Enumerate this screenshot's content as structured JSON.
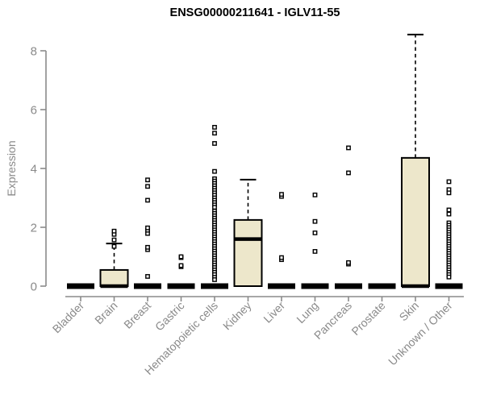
{
  "title": "ENSG00000211641 - IGLV11-55",
  "chart_data": {
    "type": "boxplot",
    "title": "ENSG00000211641 - IGLV11-55",
    "xlabel": "",
    "ylabel": "Expression",
    "ylim": [
      0,
      8.6
    ],
    "yticks": [
      0,
      2,
      4,
      6,
      8
    ],
    "grid": false,
    "legend": "none",
    "categories": [
      "Bladder",
      "Brain",
      "Breast",
      "Gastric",
      "Hematopoietic cells",
      "Kidney",
      "Liver",
      "Lung",
      "Pancreas",
      "Prostate",
      "Skin",
      "Unknown / Other"
    ],
    "boxes": [
      {
        "category": "Bladder",
        "min": 0,
        "q1": 0,
        "median": 0,
        "q3": 0,
        "whisker_high": 0,
        "outliers": []
      },
      {
        "category": "Brain",
        "min": 0,
        "q1": 0,
        "median": 0,
        "q3": 0.55,
        "whisker_high": 1.45,
        "outliers": [
          1.35,
          1.57,
          1.76,
          1.87
        ]
      },
      {
        "category": "Breast",
        "min": 0,
        "q1": 0,
        "median": 0,
        "q3": 0,
        "whisker_high": 0,
        "outliers": [
          0.33,
          1.24,
          1.32,
          1.79,
          1.9,
          1.98,
          2.92,
          3.39,
          3.61
        ]
      },
      {
        "category": "Gastric",
        "min": 0,
        "q1": 0,
        "median": 0,
        "q3": 0,
        "whisker_high": 0,
        "outliers": [
          0.66,
          0.7,
          0.97,
          1.0
        ]
      },
      {
        "category": "Hematopoietic cells",
        "min": 0,
        "q1": 0,
        "median": 0,
        "q3": 0,
        "whisker_high": 0,
        "outliers": [
          5.4,
          5.2,
          4.85,
          3.9,
          3.65,
          3.57,
          3.49,
          3.41,
          3.33,
          3.25,
          3.17,
          3.09,
          3.0,
          2.92,
          2.84,
          2.76,
          2.68,
          2.55,
          2.47,
          2.39,
          2.31,
          2.23,
          2.15,
          2.07,
          1.99,
          1.91,
          1.83,
          1.75,
          1.67,
          1.59,
          1.51,
          1.43,
          1.35,
          1.27,
          1.19,
          1.11,
          1.03,
          0.95,
          0.87,
          0.79,
          0.71,
          0.63,
          0.55,
          0.47,
          0.39,
          0.3,
          0.22
        ]
      },
      {
        "category": "Kidney",
        "min": 0,
        "q1": 0,
        "median": 1.6,
        "q3": 2.25,
        "whisker_high": 3.62,
        "outliers": []
      },
      {
        "category": "Liver",
        "min": 0,
        "q1": 0,
        "median": 0,
        "q3": 0,
        "whisker_high": 0,
        "outliers": [
          0.9,
          0.97,
          3.05,
          3.12
        ]
      },
      {
        "category": "Lung",
        "min": 0,
        "q1": 0,
        "median": 0,
        "q3": 0,
        "whisker_high": 0,
        "outliers": [
          1.18,
          1.81,
          2.2,
          3.1
        ]
      },
      {
        "category": "Pancreas",
        "min": 0,
        "q1": 0,
        "median": 0,
        "q3": 0,
        "whisker_high": 0,
        "outliers": [
          0.75,
          0.8,
          3.85,
          4.7
        ]
      },
      {
        "category": "Prostate",
        "min": 0,
        "q1": 0,
        "median": 0,
        "q3": 0,
        "whisker_high": 0,
        "outliers": []
      },
      {
        "category": "Skin",
        "min": 0,
        "q1": 0,
        "median": 0,
        "q3": 4.36,
        "whisker_high": 8.55,
        "outliers": []
      },
      {
        "category": "Unknown / Other",
        "min": 0,
        "q1": 0,
        "median": 0,
        "q3": 0,
        "whisker_high": 0,
        "outliers": [
          3.55,
          3.28,
          3.17,
          2.59,
          2.45,
          2.15,
          2.07,
          1.99,
          1.91,
          1.83,
          1.75,
          1.67,
          1.59,
          1.51,
          1.43,
          1.35,
          1.27,
          1.19,
          1.11,
          1.03,
          0.95,
          0.87,
          0.79,
          0.71,
          0.63,
          0.55,
          0.47,
          0.39,
          0.31
        ]
      }
    ],
    "style": {
      "box_fill": "#EDE7CB",
      "box_stroke": "#000000",
      "median_color": "#000000",
      "outlier_fill": "#ffffff",
      "outlier_stroke": "#000000",
      "axis_color": "#8a8a8a",
      "tick_label_color": "#8a8a8a",
      "title_color": "#000000",
      "background": "#ffffff"
    }
  }
}
